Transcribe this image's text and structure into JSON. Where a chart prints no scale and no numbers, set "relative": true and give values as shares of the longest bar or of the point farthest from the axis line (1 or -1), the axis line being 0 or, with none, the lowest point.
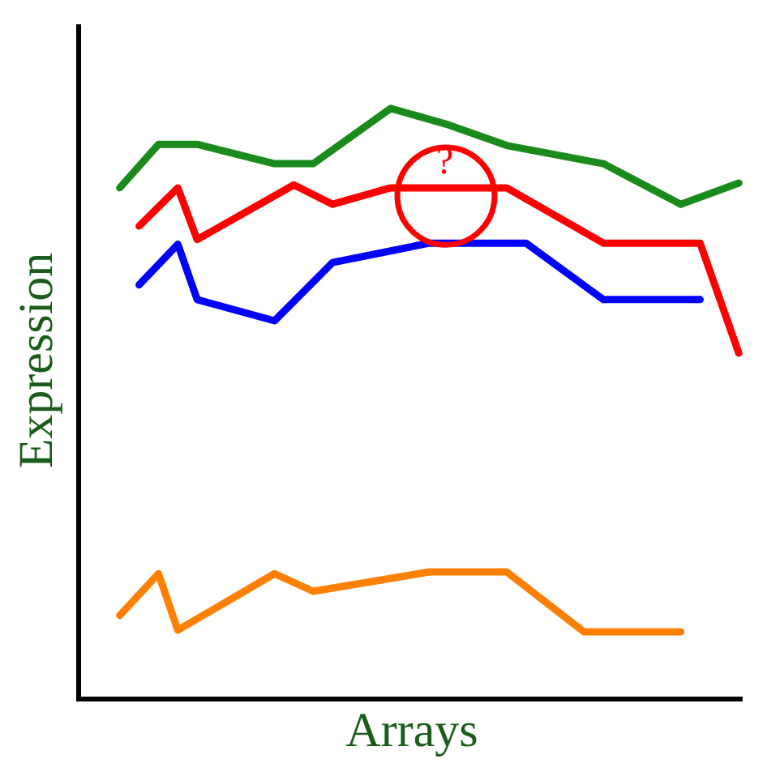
{
  "chart_data": {
    "type": "line",
    "relative": true,
    "xlabel": "Arrays",
    "ylabel": "Expression",
    "marker": "none",
    "line_style": "solid",
    "tick_labels": false,
    "annotations": [
      "?"
    ],
    "categories": [
      null,
      null,
      null,
      null,
      null,
      null,
      null,
      null,
      null,
      null,
      null,
      null,
      null,
      null,
      null,
      null,
      null,
      null,
      null,
      null,
      null,
      null,
      null,
      null,
      null,
      null,
      null,
      null,
      null,
      null,
      null,
      null,
      null,
      null,
      null
    ],
    "series": [
      {
        "color": "#1a8a1a",
        "values": [
          null,
          null,
          0.865,
          null,
          0.939,
          null,
          0.939,
          null,
          null,
          null,
          0.906,
          null,
          0.906,
          null,
          null,
          null,
          1,
          null,
          null,
          0.972,
          null,
          null,
          0.937,
          null,
          null,
          null,
          null,
          0.906,
          null,
          null,
          null,
          0.837,
          null,
          null,
          0.873
        ]
      },
      {
        "color": "#ff0000",
        "values": [
          null,
          null,
          null,
          0.8,
          null,
          0.865,
          0.777,
          null,
          null,
          null,
          null,
          0.87,
          null,
          0.837,
          null,
          null,
          0.865,
          null,
          null,
          null,
          null,
          null,
          0.865,
          null,
          null,
          null,
          null,
          0.771,
          null,
          null,
          null,
          null,
          0.771,
          null,
          0.584
        ]
      },
      {
        "color": "#0000ff",
        "values": [
          null,
          null,
          null,
          0.7,
          null,
          0.769,
          0.675,
          null,
          null,
          null,
          0.639,
          null,
          null,
          0.738,
          null,
          null,
          null,
          null,
          0.771,
          null,
          null,
          null,
          null,
          0.771,
          null,
          null,
          null,
          0.675,
          null,
          null,
          null,
          null,
          0.675,
          null,
          null
        ]
      },
      {
        "color": "#ff8000",
        "values": [
          null,
          null,
          0.138,
          null,
          0.209,
          0.113,
          null,
          null,
          null,
          null,
          0.209,
          null,
          0.179,
          null,
          null,
          null,
          null,
          null,
          0.212,
          null,
          null,
          null,
          0.212,
          null,
          null,
          null,
          0.11,
          null,
          null,
          null,
          null,
          0.11,
          null,
          null,
          null
        ]
      }
    ]
  }
}
